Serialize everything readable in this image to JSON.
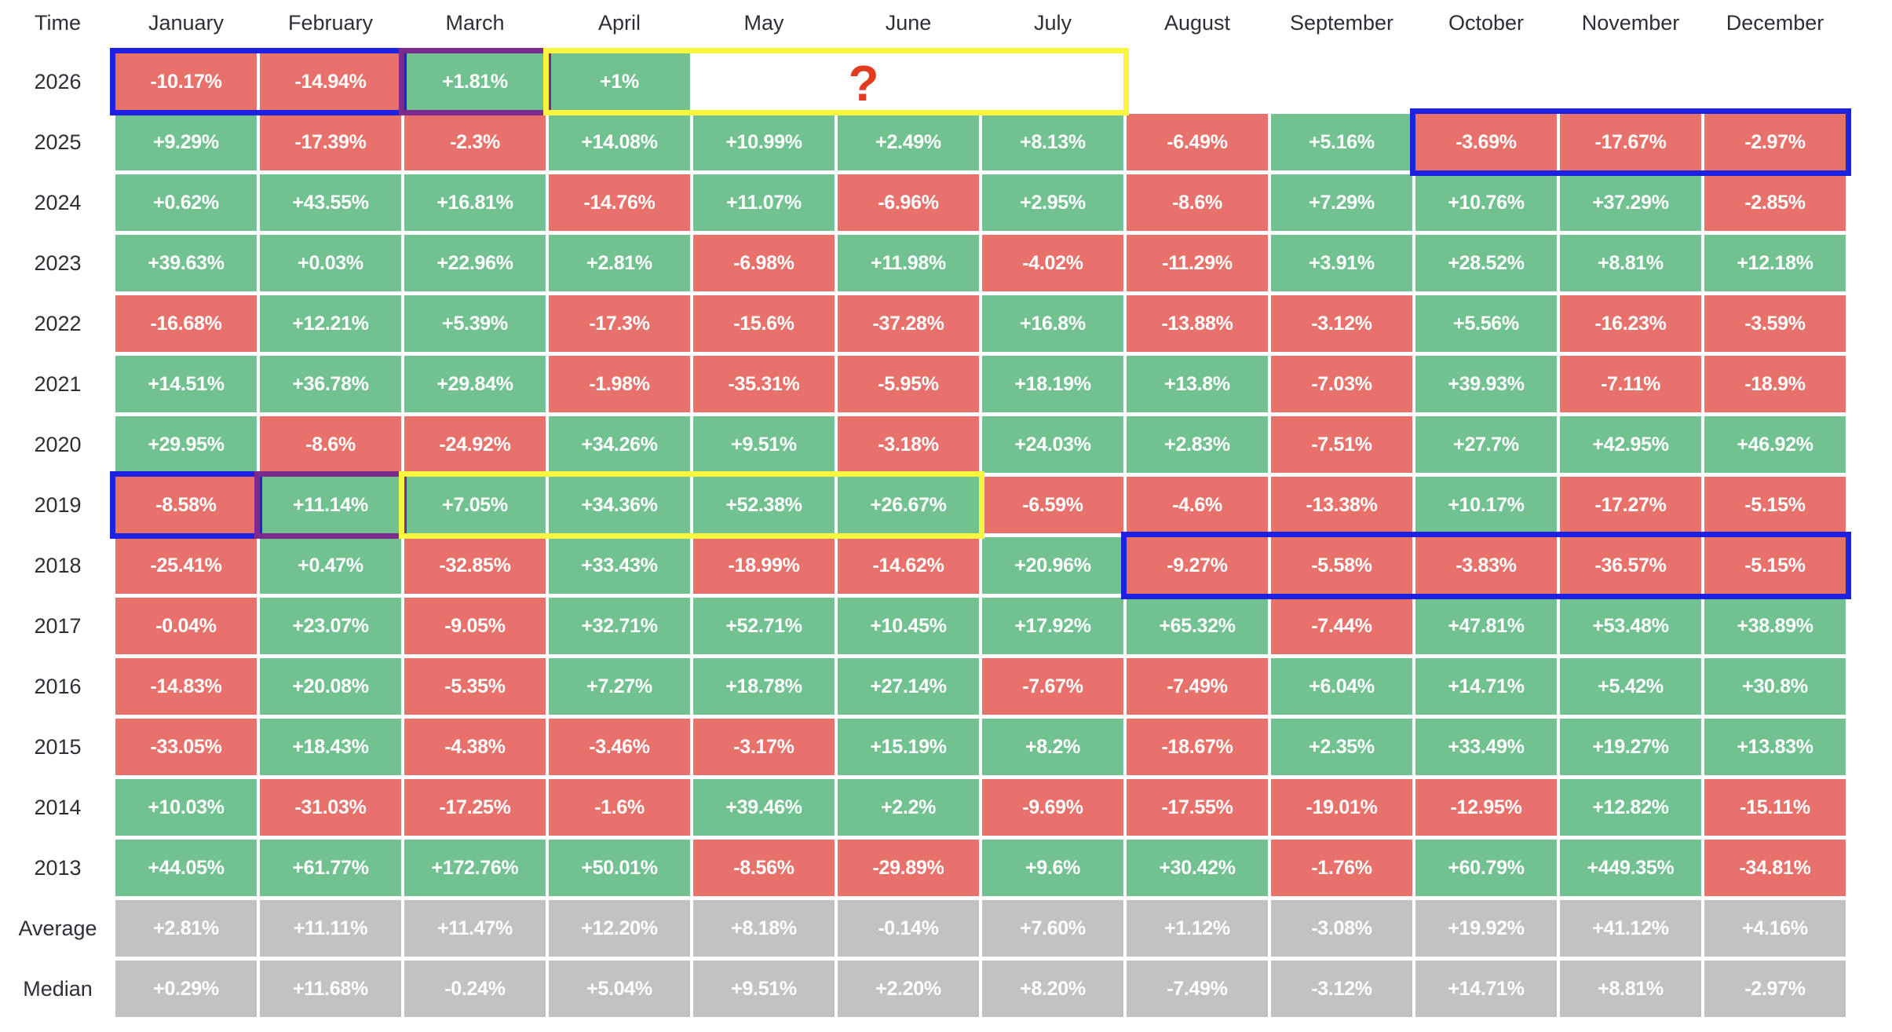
{
  "table": {
    "corner_label": "Time",
    "months": [
      "January",
      "February",
      "March",
      "April",
      "May",
      "June",
      "July",
      "August",
      "September",
      "October",
      "November",
      "December"
    ],
    "rows": [
      {
        "label": "2026",
        "summary": false,
        "cells": [
          "-10.17%",
          "-14.94%",
          "+1.81%",
          "+1%",
          null,
          null,
          null,
          null,
          null,
          null,
          null,
          null
        ]
      },
      {
        "label": "2025",
        "summary": false,
        "cells": [
          "+9.29%",
          "-17.39%",
          "-2.3%",
          "+14.08%",
          "+10.99%",
          "+2.49%",
          "+8.13%",
          "-6.49%",
          "+5.16%",
          "-3.69%",
          "-17.67%",
          "-2.97%"
        ]
      },
      {
        "label": "2024",
        "summary": false,
        "cells": [
          "+0.62%",
          "+43.55%",
          "+16.81%",
          "-14.76%",
          "+11.07%",
          "-6.96%",
          "+2.95%",
          "-8.6%",
          "+7.29%",
          "+10.76%",
          "+37.29%",
          "-2.85%"
        ]
      },
      {
        "label": "2023",
        "summary": false,
        "cells": [
          "+39.63%",
          "+0.03%",
          "+22.96%",
          "+2.81%",
          "-6.98%",
          "+11.98%",
          "-4.02%",
          "-11.29%",
          "+3.91%",
          "+28.52%",
          "+8.81%",
          "+12.18%"
        ]
      },
      {
        "label": "2022",
        "summary": false,
        "cells": [
          "-16.68%",
          "+12.21%",
          "+5.39%",
          "-17.3%",
          "-15.6%",
          "-37.28%",
          "+16.8%",
          "-13.88%",
          "-3.12%",
          "+5.56%",
          "-16.23%",
          "-3.59%"
        ]
      },
      {
        "label": "2021",
        "summary": false,
        "cells": [
          "+14.51%",
          "+36.78%",
          "+29.84%",
          "-1.98%",
          "-35.31%",
          "-5.95%",
          "+18.19%",
          "+13.8%",
          "-7.03%",
          "+39.93%",
          "-7.11%",
          "-18.9%"
        ]
      },
      {
        "label": "2020",
        "summary": false,
        "cells": [
          "+29.95%",
          "-8.6%",
          "-24.92%",
          "+34.26%",
          "+9.51%",
          "-3.18%",
          "+24.03%",
          "+2.83%",
          "-7.51%",
          "+27.7%",
          "+42.95%",
          "+46.92%"
        ]
      },
      {
        "label": "2019",
        "summary": false,
        "cells": [
          "-8.58%",
          "+11.14%",
          "+7.05%",
          "+34.36%",
          "+52.38%",
          "+26.67%",
          "-6.59%",
          "-4.6%",
          "-13.38%",
          "+10.17%",
          "-17.27%",
          "-5.15%"
        ]
      },
      {
        "label": "2018",
        "summary": false,
        "cells": [
          "-25.41%",
          "+0.47%",
          "-32.85%",
          "+33.43%",
          "-18.99%",
          "-14.62%",
          "+20.96%",
          "-9.27%",
          "-5.58%",
          "-3.83%",
          "-36.57%",
          "-5.15%"
        ]
      },
      {
        "label": "2017",
        "summary": false,
        "cells": [
          "-0.04%",
          "+23.07%",
          "-9.05%",
          "+32.71%",
          "+52.71%",
          "+10.45%",
          "+17.92%",
          "+65.32%",
          "-7.44%",
          "+47.81%",
          "+53.48%",
          "+38.89%"
        ]
      },
      {
        "label": "2016",
        "summary": false,
        "cells": [
          "-14.83%",
          "+20.08%",
          "-5.35%",
          "+7.27%",
          "+18.78%",
          "+27.14%",
          "-7.67%",
          "-7.49%",
          "+6.04%",
          "+14.71%",
          "+5.42%",
          "+30.8%"
        ]
      },
      {
        "label": "2015",
        "summary": false,
        "cells": [
          "-33.05%",
          "+18.43%",
          "-4.38%",
          "-3.46%",
          "-3.17%",
          "+15.19%",
          "+8.2%",
          "-18.67%",
          "+2.35%",
          "+33.49%",
          "+19.27%",
          "+13.83%"
        ]
      },
      {
        "label": "2014",
        "summary": false,
        "cells": [
          "+10.03%",
          "-31.03%",
          "-17.25%",
          "-1.6%",
          "+39.46%",
          "+2.2%",
          "-9.69%",
          "-17.55%",
          "-19.01%",
          "-12.95%",
          "+12.82%",
          "-15.11%"
        ]
      },
      {
        "label": "2013",
        "summary": false,
        "cells": [
          "+44.05%",
          "+61.77%",
          "+172.76%",
          "+50.01%",
          "-8.56%",
          "-29.89%",
          "+9.6%",
          "+30.42%",
          "-1.76%",
          "+60.79%",
          "+449.35%",
          "-34.81%"
        ]
      },
      {
        "label": "Average",
        "summary": true,
        "cells": [
          "+2.81%",
          "+11.11%",
          "+11.47%",
          "+12.20%",
          "+8.18%",
          "-0.14%",
          "+7.60%",
          "+1.12%",
          "-3.08%",
          "+19.92%",
          "+41.12%",
          "+4.16%"
        ]
      },
      {
        "label": "Median",
        "summary": true,
        "cells": [
          "+0.29%",
          "+11.68%",
          "-0.24%",
          "+5.04%",
          "+9.51%",
          "+2.20%",
          "+8.20%",
          "-7.49%",
          "-3.12%",
          "+14.71%",
          "+8.81%",
          "-2.97%"
        ]
      }
    ],
    "annotations": {
      "question_mark": "?",
      "highlights": [
        {
          "row": 0,
          "from": 0,
          "to": 1,
          "color": "blue"
        },
        {
          "row": 0,
          "from": 2,
          "to": 2,
          "color": "purple"
        },
        {
          "row": 0,
          "from": 3,
          "to": 6,
          "color": "yellow"
        },
        {
          "row": 1,
          "from": 9,
          "to": 11,
          "color": "blue"
        },
        {
          "row": 7,
          "from": 0,
          "to": 0,
          "color": "blue"
        },
        {
          "row": 7,
          "from": 1,
          "to": 1,
          "color": "purple"
        },
        {
          "row": 7,
          "from": 2,
          "to": 5,
          "color": "yellow"
        },
        {
          "row": 8,
          "from": 7,
          "to": 11,
          "color": "blue"
        }
      ]
    },
    "colors": {
      "positive": "#71c290",
      "negative": "#e8726b",
      "summary": "#c2c2c2",
      "cell_text": "#ffffff",
      "header_text": "#2e2e38",
      "highlight_blue": "#1d21e0",
      "highlight_purple": "#7a2b8c",
      "highlight_yellow": "#f8f63e",
      "question": "#e23b1e"
    }
  },
  "chart_data": {
    "type": "heatmap",
    "categories": [
      "January",
      "February",
      "March",
      "April",
      "May",
      "June",
      "July",
      "August",
      "September",
      "October",
      "November",
      "December"
    ],
    "value_unit": "percent",
    "series": [
      {
        "name": "2026",
        "values": [
          -10.17,
          -14.94,
          1.81,
          1,
          null,
          null,
          null,
          null,
          null,
          null,
          null,
          null
        ]
      },
      {
        "name": "2025",
        "values": [
          9.29,
          -17.39,
          -2.3,
          14.08,
          10.99,
          2.49,
          8.13,
          -6.49,
          5.16,
          -3.69,
          -17.67,
          -2.97
        ]
      },
      {
        "name": "2024",
        "values": [
          0.62,
          43.55,
          16.81,
          -14.76,
          11.07,
          -6.96,
          2.95,
          -8.6,
          7.29,
          10.76,
          37.29,
          -2.85
        ]
      },
      {
        "name": "2023",
        "values": [
          39.63,
          0.03,
          22.96,
          2.81,
          -6.98,
          11.98,
          -4.02,
          -11.29,
          3.91,
          28.52,
          8.81,
          12.18
        ]
      },
      {
        "name": "2022",
        "values": [
          -16.68,
          12.21,
          5.39,
          -17.3,
          -15.6,
          -37.28,
          16.8,
          -13.88,
          -3.12,
          5.56,
          -16.23,
          -3.59
        ]
      },
      {
        "name": "2021",
        "values": [
          14.51,
          36.78,
          29.84,
          -1.98,
          -35.31,
          -5.95,
          18.19,
          13.8,
          -7.03,
          39.93,
          -7.11,
          -18.9
        ]
      },
      {
        "name": "2020",
        "values": [
          29.95,
          -8.6,
          -24.92,
          34.26,
          9.51,
          -3.18,
          24.03,
          2.83,
          -7.51,
          27.7,
          42.95,
          46.92
        ]
      },
      {
        "name": "2019",
        "values": [
          -8.58,
          11.14,
          7.05,
          34.36,
          52.38,
          26.67,
          -6.59,
          -4.6,
          -13.38,
          10.17,
          -17.27,
          -5.15
        ]
      },
      {
        "name": "2018",
        "values": [
          -25.41,
          0.47,
          -32.85,
          33.43,
          -18.99,
          -14.62,
          20.96,
          -9.27,
          -5.58,
          -3.83,
          -36.57,
          -5.15
        ]
      },
      {
        "name": "2017",
        "values": [
          -0.04,
          23.07,
          -9.05,
          32.71,
          52.71,
          10.45,
          17.92,
          65.32,
          -7.44,
          47.81,
          53.48,
          38.89
        ]
      },
      {
        "name": "2016",
        "values": [
          -14.83,
          20.08,
          -5.35,
          7.27,
          18.78,
          27.14,
          -7.67,
          -7.49,
          6.04,
          14.71,
          5.42,
          30.8
        ]
      },
      {
        "name": "2015",
        "values": [
          -33.05,
          18.43,
          -4.38,
          -3.46,
          -3.17,
          15.19,
          8.2,
          -18.67,
          2.35,
          33.49,
          19.27,
          13.83
        ]
      },
      {
        "name": "2014",
        "values": [
          10.03,
          -31.03,
          -17.25,
          -1.6,
          39.46,
          2.2,
          -9.69,
          -17.55,
          -19.01,
          -12.95,
          12.82,
          -15.11
        ]
      },
      {
        "name": "2013",
        "values": [
          44.05,
          61.77,
          172.76,
          50.01,
          -8.56,
          -29.89,
          9.6,
          30.42,
          -1.76,
          60.79,
          449.35,
          -34.81
        ]
      },
      {
        "name": "Average",
        "values": [
          2.81,
          11.11,
          11.47,
          12.2,
          8.18,
          -0.14,
          7.6,
          1.12,
          -3.08,
          19.92,
          41.12,
          4.16
        ]
      },
      {
        "name": "Median",
        "values": [
          0.29,
          11.68,
          -0.24,
          5.04,
          9.51,
          2.2,
          8.2,
          -7.49,
          -3.12,
          14.71,
          8.81,
          -2.97
        ]
      }
    ],
    "annotations": {
      "missing_months_2026": [
        "May",
        "June",
        "July",
        "August",
        "September",
        "October",
        "November",
        "December"
      ],
      "question_mark_region": "2026 May-July",
      "highlight_boxes": [
        "blue: 2026 Jan-Feb",
        "purple: 2026 Mar",
        "yellow: 2026 Apr-Jul",
        "blue: 2025 Oct-Dec",
        "blue: 2019 Jan",
        "purple: 2019 Feb",
        "yellow: 2019 Mar-Jun",
        "blue: 2018 Aug-Dec"
      ],
      "legend": "green = positive month, red = negative month, gray = summary rows"
    }
  }
}
